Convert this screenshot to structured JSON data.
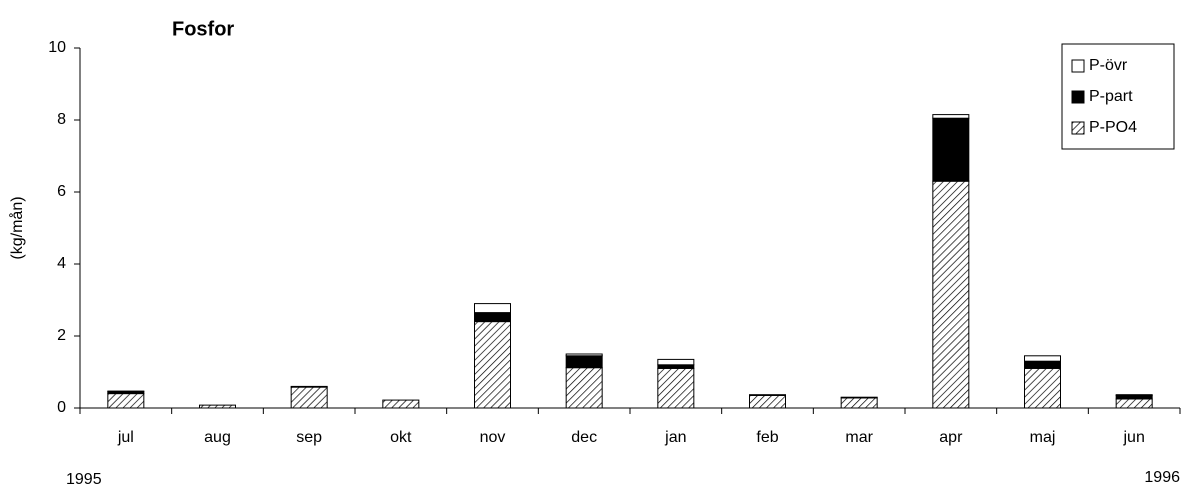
{
  "chart_data": {
    "type": "stacked_bar",
    "title": "Fosfor",
    "y_label": "(kg/mån)",
    "categories": [
      "jul",
      "aug",
      "sep",
      "okt",
      "nov",
      "dec",
      "jan",
      "feb",
      "mar",
      "apr",
      "maj",
      "jun"
    ],
    "annotations": [
      "1995",
      "1996"
    ],
    "series": [
      {
        "name": "P-PO4",
        "color": "#000000",
        "pattern": "hatch",
        "values": [
          0.4,
          0.08,
          0.58,
          0.22,
          2.4,
          1.12,
          1.1,
          0.35,
          0.28,
          6.3,
          1.1,
          0.25
        ]
      },
      {
        "name": "P-part",
        "color": "#000000",
        "values": [
          0.05,
          0,
          0,
          0,
          0.25,
          0.33,
          0.1,
          0,
          0,
          1.75,
          0.2,
          0.1
        ]
      },
      {
        "name": "P-övr",
        "color": "#ffffff",
        "values": [
          0.02,
          0,
          0.02,
          0,
          0.25,
          0.05,
          0.15,
          0.02,
          0.02,
          0.1,
          0.15,
          0.02
        ]
      }
    ],
    "ylim": [
      0,
      10
    ],
    "yticks": [
      0,
      2,
      4,
      6,
      8,
      10
    ],
    "legend": "top-right"
  }
}
